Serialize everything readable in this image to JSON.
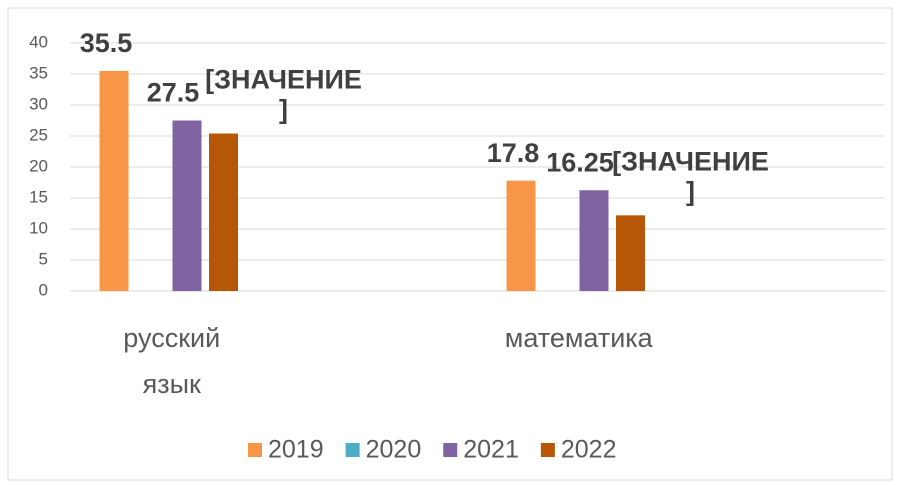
{
  "chart_data": {
    "type": "bar",
    "categories": [
      "русский язык",
      "математика"
    ],
    "series": [
      {
        "name": "2019",
        "color": "#f79646",
        "values": [
          35.5,
          17.8
        ]
      },
      {
        "name": "2020",
        "color": "#4bacc6",
        "values": [
          null,
          null
        ]
      },
      {
        "name": "2021",
        "color": "#8064a2",
        "values": [
          27.5,
          16.25
        ]
      },
      {
        "name": "2022",
        "color": "#b65708",
        "values": [
          25.4,
          12.2
        ],
        "value_labels": [
          "[ЗНАЧЕНИЕ]",
          "[ЗНАЧЕНИЕ]"
        ]
      }
    ],
    "ylim": [
      0,
      40
    ],
    "yticks": [
      0,
      5,
      10,
      15,
      20,
      25,
      30,
      35,
      40
    ],
    "grid": true,
    "legend": "bottom"
  }
}
